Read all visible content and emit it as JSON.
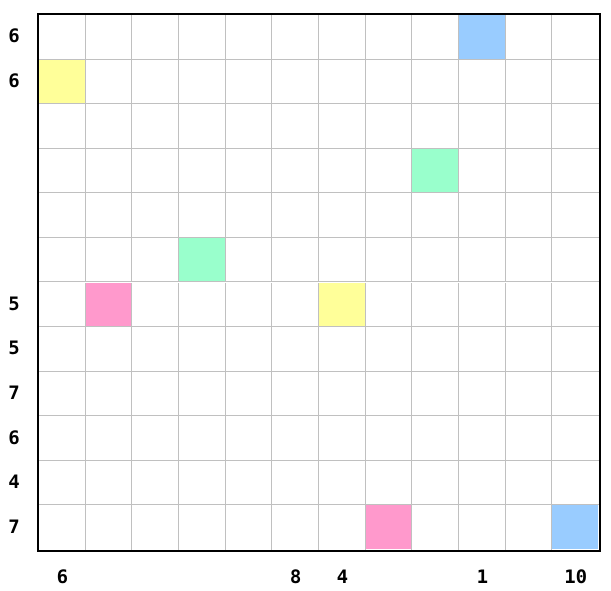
{
  "grid": {
    "rows": 12,
    "cols": 12,
    "filled_cells": [
      {
        "row": 0,
        "col": 9,
        "color": "#99ccff"
      },
      {
        "row": 1,
        "col": 0,
        "color": "#ffff99"
      },
      {
        "row": 3,
        "col": 8,
        "color": "#99ffcc"
      },
      {
        "row": 5,
        "col": 3,
        "color": "#99ffcc"
      },
      {
        "row": 6,
        "col": 1,
        "color": "#ff99cc"
      },
      {
        "row": 6,
        "col": 6,
        "color": "#ffff99"
      },
      {
        "row": 11,
        "col": 7,
        "color": "#ff99cc"
      },
      {
        "row": 11,
        "col": 11,
        "color": "#99ccff"
      }
    ]
  },
  "row_clues": [
    {
      "row": 0,
      "text": "6"
    },
    {
      "row": 1,
      "text": "6"
    },
    {
      "row": 6,
      "text": "5"
    },
    {
      "row": 7,
      "text": "5"
    },
    {
      "row": 8,
      "text": "7"
    },
    {
      "row": 9,
      "text": "6"
    },
    {
      "row": 10,
      "text": "4"
    },
    {
      "row": 11,
      "text": "7"
    }
  ],
  "col_clues": [
    {
      "col": 0,
      "text": "6"
    },
    {
      "col": 5,
      "text": "8"
    },
    {
      "col": 6,
      "text": "4"
    },
    {
      "col": 9,
      "text": "1"
    },
    {
      "col": 11,
      "text": "10"
    }
  ]
}
